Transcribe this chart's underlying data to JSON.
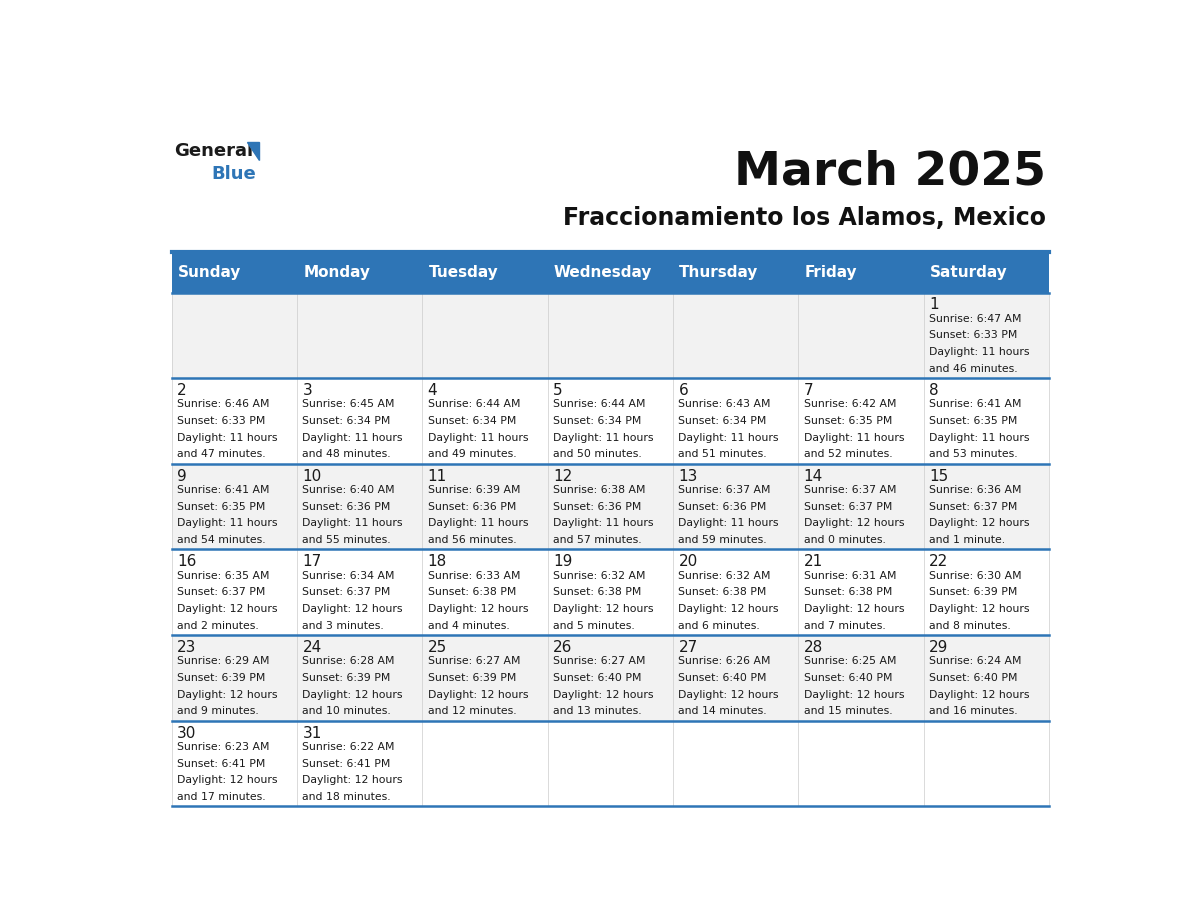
{
  "title": "March 2025",
  "subtitle": "Fraccionamiento los Alamos, Mexico",
  "header_bg": "#2E75B6",
  "header_text_color": "#FFFFFF",
  "cell_bg_odd": "#F2F2F2",
  "cell_bg_even": "#FFFFFF",
  "border_color": "#2E75B6",
  "separator_color": "#2E75B6",
  "day_headers": [
    "Sunday",
    "Monday",
    "Tuesday",
    "Wednesday",
    "Thursday",
    "Friday",
    "Saturday"
  ],
  "calendar_data": [
    [
      {
        "day": "",
        "sunrise": "",
        "sunset": "",
        "daylight": ""
      },
      {
        "day": "",
        "sunrise": "",
        "sunset": "",
        "daylight": ""
      },
      {
        "day": "",
        "sunrise": "",
        "sunset": "",
        "daylight": ""
      },
      {
        "day": "",
        "sunrise": "",
        "sunset": "",
        "daylight": ""
      },
      {
        "day": "",
        "sunrise": "",
        "sunset": "",
        "daylight": ""
      },
      {
        "day": "",
        "sunrise": "",
        "sunset": "",
        "daylight": ""
      },
      {
        "day": "1",
        "sunrise": "6:47 AM",
        "sunset": "6:33 PM",
        "daylight": "11 hours and 46 minutes."
      }
    ],
    [
      {
        "day": "2",
        "sunrise": "6:46 AM",
        "sunset": "6:33 PM",
        "daylight": "11 hours and 47 minutes."
      },
      {
        "day": "3",
        "sunrise": "6:45 AM",
        "sunset": "6:34 PM",
        "daylight": "11 hours and 48 minutes."
      },
      {
        "day": "4",
        "sunrise": "6:44 AM",
        "sunset": "6:34 PM",
        "daylight": "11 hours and 49 minutes."
      },
      {
        "day": "5",
        "sunrise": "6:44 AM",
        "sunset": "6:34 PM",
        "daylight": "11 hours and 50 minutes."
      },
      {
        "day": "6",
        "sunrise": "6:43 AM",
        "sunset": "6:34 PM",
        "daylight": "11 hours and 51 minutes."
      },
      {
        "day": "7",
        "sunrise": "6:42 AM",
        "sunset": "6:35 PM",
        "daylight": "11 hours and 52 minutes."
      },
      {
        "day": "8",
        "sunrise": "6:41 AM",
        "sunset": "6:35 PM",
        "daylight": "11 hours and 53 minutes."
      }
    ],
    [
      {
        "day": "9",
        "sunrise": "6:41 AM",
        "sunset": "6:35 PM",
        "daylight": "11 hours and 54 minutes."
      },
      {
        "day": "10",
        "sunrise": "6:40 AM",
        "sunset": "6:36 PM",
        "daylight": "11 hours and 55 minutes."
      },
      {
        "day": "11",
        "sunrise": "6:39 AM",
        "sunset": "6:36 PM",
        "daylight": "11 hours and 56 minutes."
      },
      {
        "day": "12",
        "sunrise": "6:38 AM",
        "sunset": "6:36 PM",
        "daylight": "11 hours and 57 minutes."
      },
      {
        "day": "13",
        "sunrise": "6:37 AM",
        "sunset": "6:36 PM",
        "daylight": "11 hours and 59 minutes."
      },
      {
        "day": "14",
        "sunrise": "6:37 AM",
        "sunset": "6:37 PM",
        "daylight": "12 hours and 0 minutes."
      },
      {
        "day": "15",
        "sunrise": "6:36 AM",
        "sunset": "6:37 PM",
        "daylight": "12 hours and 1 minute."
      }
    ],
    [
      {
        "day": "16",
        "sunrise": "6:35 AM",
        "sunset": "6:37 PM",
        "daylight": "12 hours and 2 minutes."
      },
      {
        "day": "17",
        "sunrise": "6:34 AM",
        "sunset": "6:37 PM",
        "daylight": "12 hours and 3 minutes."
      },
      {
        "day": "18",
        "sunrise": "6:33 AM",
        "sunset": "6:38 PM",
        "daylight": "12 hours and 4 minutes."
      },
      {
        "day": "19",
        "sunrise": "6:32 AM",
        "sunset": "6:38 PM",
        "daylight": "12 hours and 5 minutes."
      },
      {
        "day": "20",
        "sunrise": "6:32 AM",
        "sunset": "6:38 PM",
        "daylight": "12 hours and 6 minutes."
      },
      {
        "day": "21",
        "sunrise": "6:31 AM",
        "sunset": "6:38 PM",
        "daylight": "12 hours and 7 minutes."
      },
      {
        "day": "22",
        "sunrise": "6:30 AM",
        "sunset": "6:39 PM",
        "daylight": "12 hours and 8 minutes."
      }
    ],
    [
      {
        "day": "23",
        "sunrise": "6:29 AM",
        "sunset": "6:39 PM",
        "daylight": "12 hours and 9 minutes."
      },
      {
        "day": "24",
        "sunrise": "6:28 AM",
        "sunset": "6:39 PM",
        "daylight": "12 hours and 10 minutes."
      },
      {
        "day": "25",
        "sunrise": "6:27 AM",
        "sunset": "6:39 PM",
        "daylight": "12 hours and 12 minutes."
      },
      {
        "day": "26",
        "sunrise": "6:27 AM",
        "sunset": "6:40 PM",
        "daylight": "12 hours and 13 minutes."
      },
      {
        "day": "27",
        "sunrise": "6:26 AM",
        "sunset": "6:40 PM",
        "daylight": "12 hours and 14 minutes."
      },
      {
        "day": "28",
        "sunrise": "6:25 AM",
        "sunset": "6:40 PM",
        "daylight": "12 hours and 15 minutes."
      },
      {
        "day": "29",
        "sunrise": "6:24 AM",
        "sunset": "6:40 PM",
        "daylight": "12 hours and 16 minutes."
      }
    ],
    [
      {
        "day": "30",
        "sunrise": "6:23 AM",
        "sunset": "6:41 PM",
        "daylight": "12 hours and 17 minutes."
      },
      {
        "day": "31",
        "sunrise": "6:22 AM",
        "sunset": "6:41 PM",
        "daylight": "12 hours and 18 minutes."
      },
      {
        "day": "",
        "sunrise": "",
        "sunset": "",
        "daylight": ""
      },
      {
        "day": "",
        "sunrise": "",
        "sunset": "",
        "daylight": ""
      },
      {
        "day": "",
        "sunrise": "",
        "sunset": "",
        "daylight": ""
      },
      {
        "day": "",
        "sunrise": "",
        "sunset": "",
        "daylight": ""
      },
      {
        "day": "",
        "sunrise": "",
        "sunset": "",
        "daylight": ""
      }
    ]
  ]
}
